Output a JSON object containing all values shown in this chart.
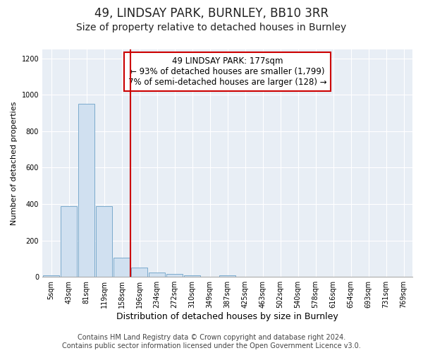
{
  "title": "49, LINDSAY PARK, BURNLEY, BB10 3RR",
  "subtitle": "Size of property relative to detached houses in Burnley",
  "xlabel": "Distribution of detached houses by size in Burnley",
  "ylabel": "Number of detached properties",
  "categories": [
    "5sqm",
    "43sqm",
    "81sqm",
    "119sqm",
    "158sqm",
    "196sqm",
    "234sqm",
    "272sqm",
    "310sqm",
    "349sqm",
    "387sqm",
    "425sqm",
    "463sqm",
    "502sqm",
    "540sqm",
    "578sqm",
    "616sqm",
    "654sqm",
    "693sqm",
    "731sqm",
    "769sqm"
  ],
  "values": [
    10,
    390,
    950,
    390,
    105,
    50,
    25,
    15,
    10,
    0,
    10,
    0,
    0,
    0,
    0,
    0,
    0,
    0,
    0,
    0,
    0
  ],
  "bar_color": "#d0e0f0",
  "bar_edge_color": "#7aaacc",
  "vline_x_index": 4.5,
  "vline_color": "#cc0000",
  "annotation_line1": "49 LINDSAY PARK: 177sqm",
  "annotation_line2": "← 93% of detached houses are smaller (1,799)",
  "annotation_line3": "7% of semi-detached houses are larger (128) →",
  "annotation_box_color": "#cc0000",
  "plot_bg_color": "#e8eef5",
  "fig_bg_color": "#ffffff",
  "grid_color": "#ffffff",
  "ylim": [
    0,
    1250
  ],
  "yticks": [
    0,
    200,
    400,
    600,
    800,
    1000,
    1200
  ],
  "footer_line1": "Contains HM Land Registry data © Crown copyright and database right 2024.",
  "footer_line2": "Contains public sector information licensed under the Open Government Licence v3.0.",
  "title_fontsize": 12,
  "subtitle_fontsize": 10,
  "xlabel_fontsize": 9,
  "ylabel_fontsize": 8,
  "tick_fontsize": 7,
  "annotation_fontsize": 8.5,
  "footer_fontsize": 7
}
